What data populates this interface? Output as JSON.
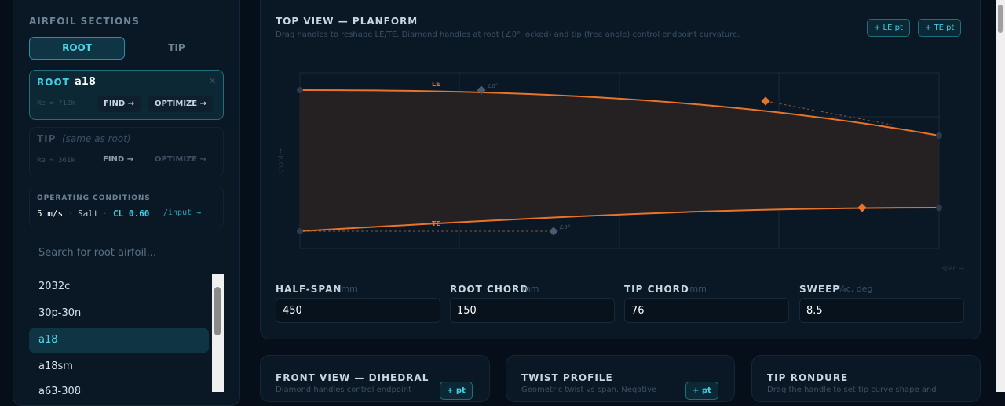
{
  "sidebar": {
    "title": "AIRFOIL SECTIONS",
    "tabs": [
      "ROOT",
      "TIP"
    ],
    "root_card": {
      "label": "ROOT",
      "airfoil": "a18",
      "close": "×",
      "re": "Re = 712k",
      "find": "FIND →",
      "optimize": "OPTIMIZE →"
    },
    "tip_card": {
      "label": "TIP",
      "airfoil": "(same as root)",
      "re": "Re = 361k",
      "find": "FIND →",
      "optimize": "OPTIMIZE →"
    },
    "conditions": {
      "title": "OPERATING CONDITIONS",
      "speed": "5 m/s",
      "sep": "·",
      "medium": "Salt",
      "cl": "CL 0.60",
      "link": "/input →"
    },
    "search": "Search for root airfoil...",
    "list": [
      "2032c",
      "30p-30n",
      "a18",
      "a18sm",
      "a63-308"
    ]
  },
  "planform": {
    "title": "TOP VIEW — PLANFORM",
    "subtitle": "Drag handles to reshape LE/TE. Diamond handles at root (∠0° locked) and tip (free angle) control endpoint curvature.",
    "buttons": [
      "+ LE pt",
      "+ TE pt"
    ],
    "le": "LE",
    "te": "TE",
    "angle": "∠0°",
    "y_axis": "chord →",
    "x_axis": "span →",
    "fields": [
      {
        "label": "HALF-SPAN",
        "unit": "mm",
        "value": "450"
      },
      {
        "label": "ROOT CHORD",
        "unit": "mm",
        "value": "150"
      },
      {
        "label": "TIP CHORD",
        "unit": "mm",
        "value": "76"
      },
      {
        "label": "SWEEP",
        "unit": "¼c, deg",
        "value": "8.5"
      }
    ]
  },
  "cards": [
    {
      "title": "FRONT VIEW — DIHEDRAL",
      "subtitle": "Diamond handles control endpoint",
      "button": "+ pt"
    },
    {
      "title": "TWIST PROFILE",
      "subtitle": "Geometric twist vs span. Negative",
      "button": "+ pt"
    },
    {
      "title": "TIP RONDURE",
      "subtitle": "Drag the handle to set tip curve shape and"
    }
  ]
}
